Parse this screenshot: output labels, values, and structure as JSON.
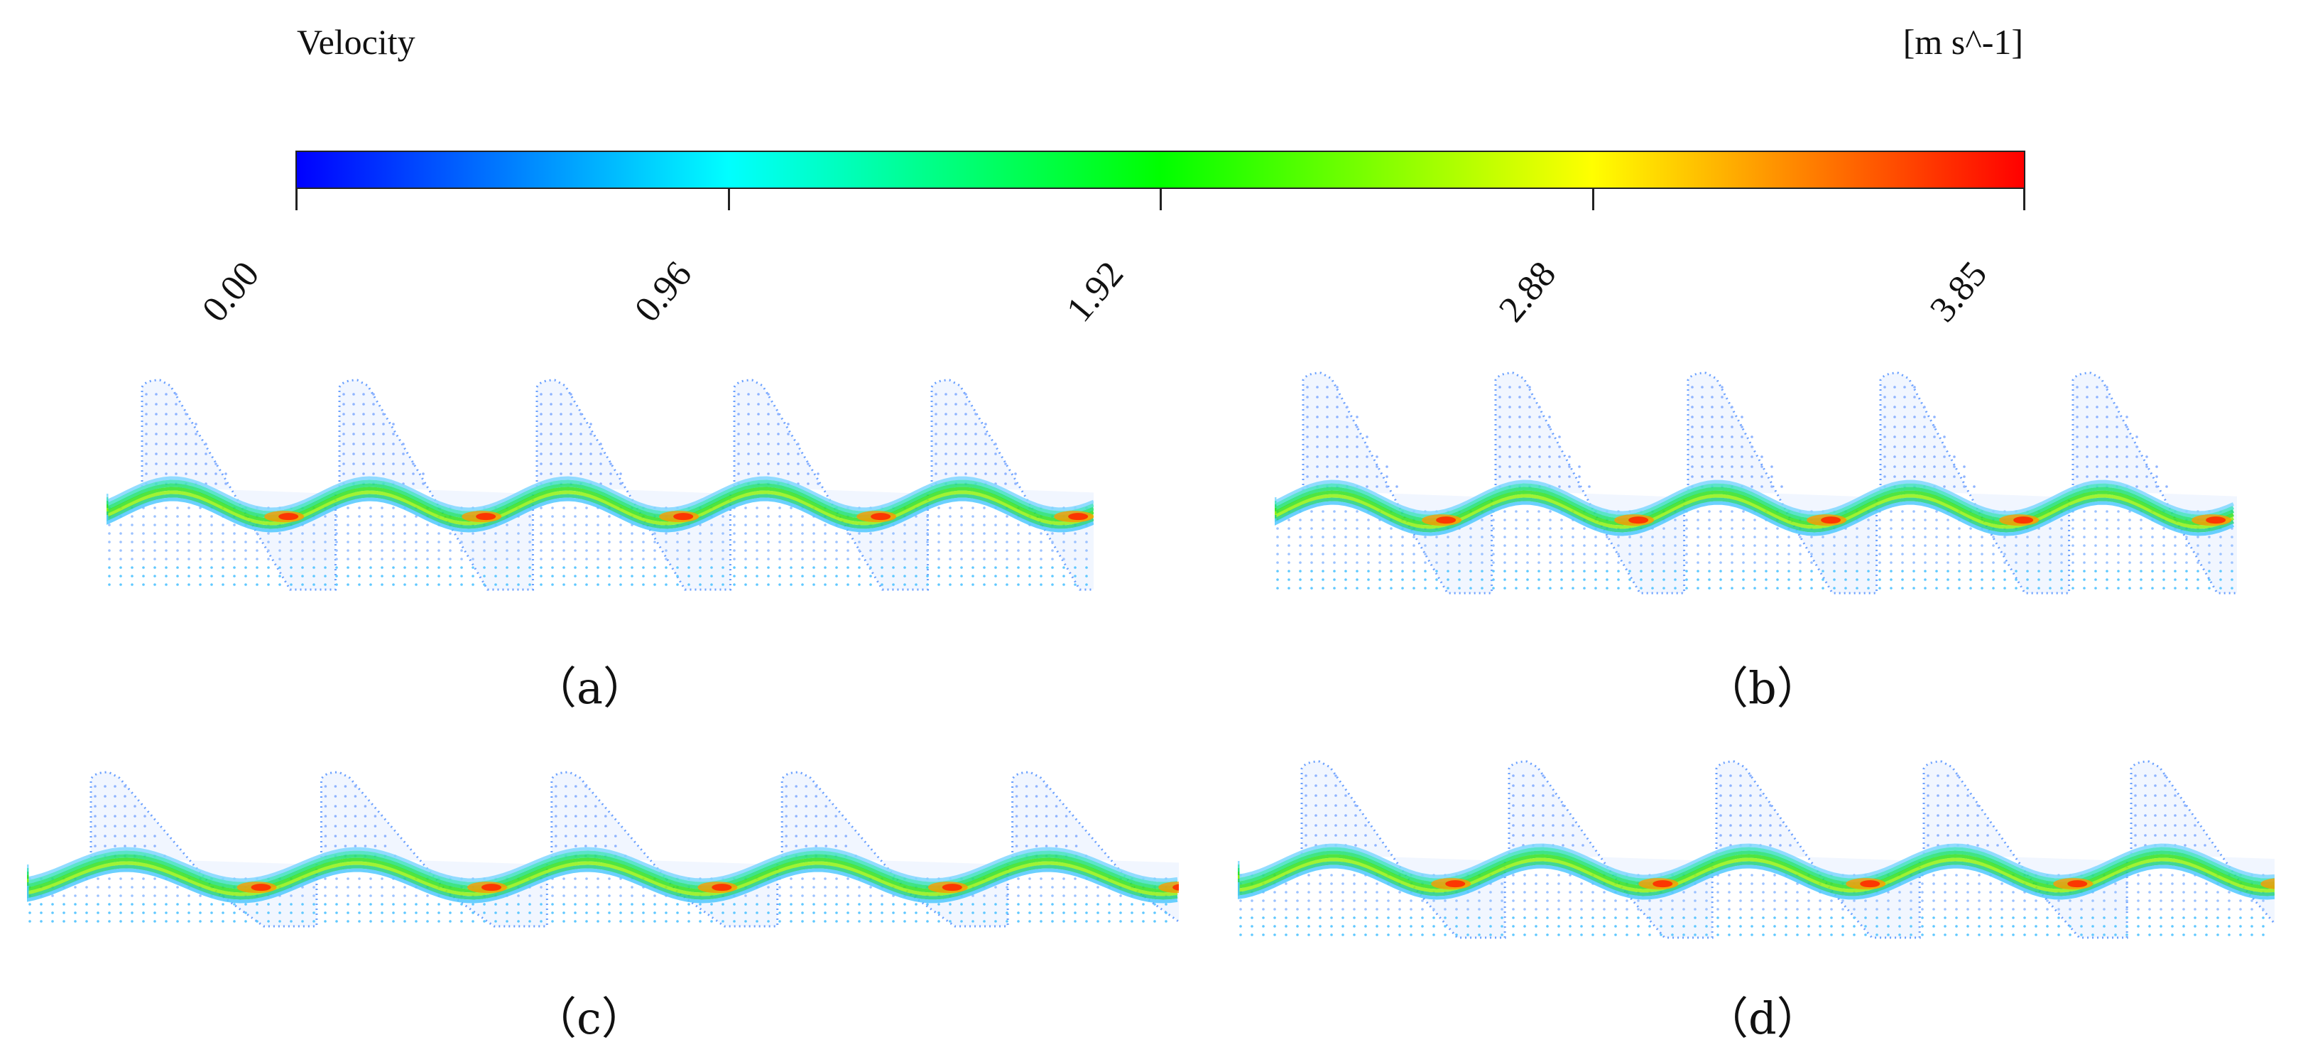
{
  "legend": {
    "title": "Velocity",
    "unit": "[m s^-1]",
    "min": 0.0,
    "max": 3.85,
    "tick_labels": [
      "0.00",
      "0.96",
      "1.92",
      "2.88",
      "3.85"
    ],
    "colormap": [
      "#0000ff",
      "#0080ff",
      "#00ffff",
      "#00ff80",
      "#00ff00",
      "#80ff00",
      "#ffff00",
      "#ff8000",
      "#ff0000"
    ]
  },
  "panels": [
    {
      "caption": "（a）",
      "teeth": 5
    },
    {
      "caption": "（b）",
      "teeth": 5
    },
    {
      "caption": "（c）",
      "teeth": 5
    },
    {
      "caption": "（d）",
      "teeth": 5
    }
  ]
}
